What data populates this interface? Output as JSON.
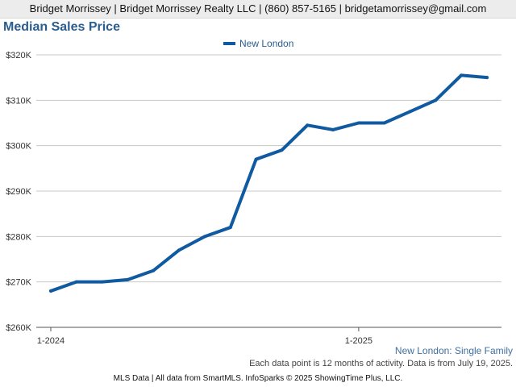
{
  "header": {
    "contact_line": "Bridget Morrissey | Bridget Morrissey Realty LLC | (860) 857-5165 | bridgetamorrissey@gmail.com"
  },
  "colors": {
    "series": "#0f5aa0",
    "title": "#2a5d8f",
    "grid": "#c8c8c8"
  },
  "chart_data": {
    "type": "line",
    "title": "Median Sales Price",
    "xlabel": "",
    "ylabel": "",
    "x": [
      "2024-01",
      "2024-02",
      "2024-03",
      "2024-04",
      "2024-05",
      "2024-06",
      "2024-07",
      "2024-08",
      "2024-09",
      "2024-10",
      "2024-11",
      "2024-12",
      "2025-01",
      "2025-02",
      "2025-03",
      "2025-04",
      "2025-05",
      "2025-06"
    ],
    "x_tick_labels": [
      {
        "x": "2024-01",
        "label": "1-2024"
      },
      {
        "x": "2025-01",
        "label": "1-2025"
      }
    ],
    "ylim": [
      260000,
      320000
    ],
    "y_ticks": [
      260000,
      270000,
      280000,
      290000,
      300000,
      310000,
      320000
    ],
    "y_tick_labels": [
      "$260K",
      "$270K",
      "$280K",
      "$290K",
      "$300K",
      "$310K",
      "$320K"
    ],
    "grid": true,
    "legend_position": "top-center",
    "series": [
      {
        "name": "New London",
        "values": [
          268000,
          270000,
          270000,
          270500,
          272500,
          277000,
          280000,
          282000,
          297000,
          299000,
          304500,
          303500,
          305000,
          305000,
          307500,
          310000,
          315500,
          315000
        ]
      }
    ]
  },
  "footer": {
    "region_label": "New London: Single Family",
    "data_note": "Each data point is 12 months of activity. Data is from July 19, 2025.",
    "credits": "MLS Data | All data from SmartMLS. InfoSparks © 2025 ShowingTime Plus, LLC."
  }
}
